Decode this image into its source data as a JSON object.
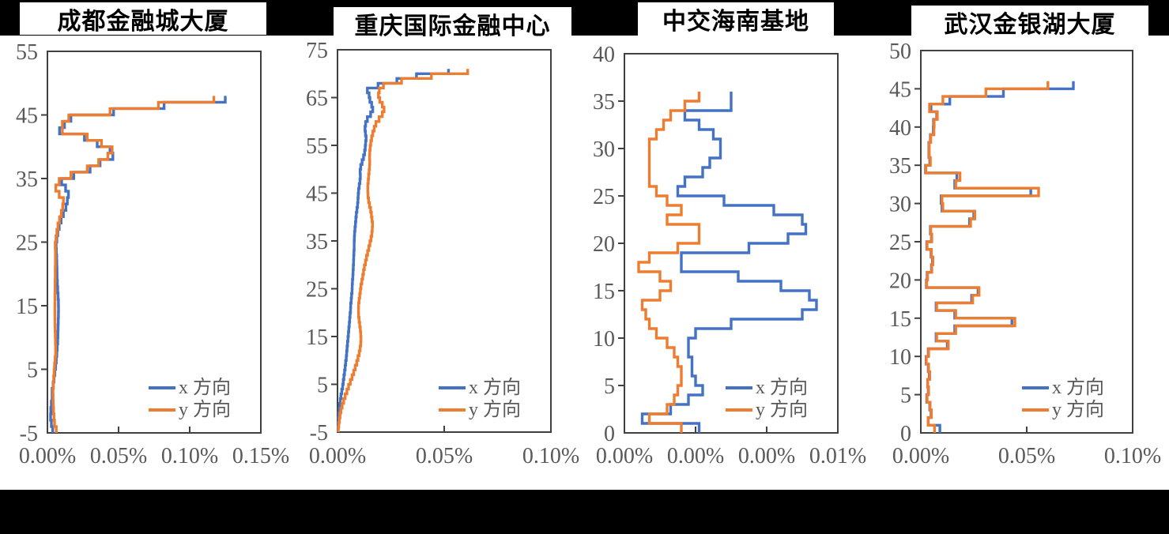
{
  "colors": {
    "series_x": "#4472C4",
    "series_y": "#ED7D31",
    "axis_line": "#404040",
    "axis_text": "#595959",
    "background_band": "#000000",
    "panel_background": "#ffffff",
    "title_text": "#000000"
  },
  "legend": {
    "x_label": "x 方向",
    "y_label": "y 方向",
    "position": "inside bottom-right"
  },
  "chart_data": [
    {
      "type": "line",
      "step": true,
      "title": "成都金融城大厦",
      "xlabel": "",
      "ylabel": "",
      "x_tick_labels": [
        "0.00%",
        "0.05%",
        "0.10%",
        "0.15%"
      ],
      "x_min": 0.0,
      "x_max": 0.15,
      "y_min": -5,
      "y_max": 55,
      "y_tick_step": 10,
      "grid": false,
      "legend_position": "inside bottom-right",
      "floors_from": -4,
      "floors_to": 48,
      "series": [
        {
          "name": "x 方向",
          "values": [
            0.0037,
            0.0028,
            0.0022,
            0.0024,
            0.0028,
            0.0033,
            0.0033,
            0.004,
            0.0046,
            0.0052,
            0.0058,
            0.0062,
            0.0066,
            0.0069,
            0.0072,
            0.0074,
            0.0075,
            0.0076,
            0.0077,
            0.0078,
            0.0077,
            0.0075,
            0.0072,
            0.007,
            0.0068,
            0.0067,
            0.0066,
            0.0065,
            0.0063,
            0.0061,
            0.0066,
            0.0073,
            0.0083,
            0.0096,
            0.0112,
            0.013,
            0.014,
            0.0148,
            0.0128,
            0.01,
            0.0185,
            0.03,
            0.037,
            0.046,
            0.044,
            0.035,
            0.026,
            0.0085,
            0.012,
            0.0165,
            0.0465,
            0.082,
            0.125
          ]
        },
        {
          "name": "y 方向",
          "values": [
            0.0062,
            0.005,
            0.0046,
            0.0043,
            0.0041,
            0.004,
            0.0039,
            0.0042,
            0.0044,
            0.0047,
            0.005,
            0.0054,
            0.0058,
            0.0057,
            0.0056,
            0.0055,
            0.0054,
            0.0053,
            0.0052,
            0.0052,
            0.0053,
            0.0053,
            0.0054,
            0.0054,
            0.0055,
            0.0055,
            0.0056,
            0.0056,
            0.0056,
            0.0055,
            0.006,
            0.0066,
            0.0074,
            0.0085,
            0.0098,
            0.0107,
            0.0112,
            0.0083,
            0.0059,
            0.0083,
            0.0165,
            0.028,
            0.036,
            0.0425,
            0.0455,
            0.038,
            0.028,
            0.0105,
            0.0105,
            0.015,
            0.044,
            0.078,
            0.117
          ]
        }
      ]
    },
    {
      "type": "line",
      "step": true,
      "title": "重庆国际金融中心",
      "xlabel": "",
      "ylabel": "",
      "x_tick_labels": [
        "0.00%",
        "0.05%",
        "0.10%"
      ],
      "x_min": 0.0,
      "x_max": 0.1,
      "y_min": -5,
      "y_max": 75,
      "y_tick_step": 10,
      "grid": false,
      "legend_position": "inside bottom-right",
      "floors_from": -4,
      "floors_to": 71,
      "series": [
        {
          "name": "x 方向",
          "values": [
            0.0003,
            0.0004,
            0.0005,
            0.0006,
            0.0008,
            0.001,
            0.0013,
            0.0016,
            0.002,
            0.0024,
            0.0027,
            0.003,
            0.0033,
            0.0036,
            0.0038,
            0.0041,
            0.0043,
            0.0045,
            0.0047,
            0.0049,
            0.0051,
            0.0053,
            0.0055,
            0.0057,
            0.0059,
            0.0061,
            0.0062,
            0.0064,
            0.0066,
            0.0068,
            0.0069,
            0.007,
            0.0072,
            0.0073,
            0.0074,
            0.0075,
            0.0076,
            0.0077,
            0.0078,
            0.0078,
            0.0079,
            0.008,
            0.0082,
            0.0084,
            0.0086,
            0.0088,
            0.0091,
            0.0094,
            0.0096,
            0.0097,
            0.0099,
            0.0102,
            0.0105,
            0.0107,
            0.0106,
            0.0109,
            0.0115,
            0.0122,
            0.0127,
            0.013,
            0.0132,
            0.0134,
            0.0131,
            0.0129,
            0.0132,
            0.014,
            0.0155,
            0.0165,
            0.016,
            0.0152,
            0.0148,
            0.014,
            0.019,
            0.0278,
            0.037,
            0.052
          ]
        },
        {
          "name": "y 方向",
          "values": [
            0.0004,
            0.0006,
            0.0009,
            0.0012,
            0.0016,
            0.0022,
            0.0029,
            0.0036,
            0.0044,
            0.0052,
            0.006,
            0.0068,
            0.0076,
            0.0083,
            0.009,
            0.0096,
            0.0102,
            0.0106,
            0.0109,
            0.011,
            0.0109,
            0.0107,
            0.0104,
            0.0101,
            0.0099,
            0.0098,
            0.0099,
            0.0101,
            0.0104,
            0.0107,
            0.011,
            0.0114,
            0.0118,
            0.0122,
            0.0126,
            0.0131,
            0.0136,
            0.0141,
            0.0147,
            0.0152,
            0.0157,
            0.0161,
            0.0163,
            0.0164,
            0.0162,
            0.0159,
            0.0155,
            0.015,
            0.0146,
            0.0143,
            0.0142,
            0.0142,
            0.0144,
            0.0146,
            0.0148,
            0.015,
            0.0151,
            0.015,
            0.0151,
            0.0153,
            0.0156,
            0.016,
            0.0165,
            0.0172,
            0.018,
            0.0195,
            0.021,
            0.0218,
            0.021,
            0.0198,
            0.0192,
            0.0196,
            0.0215,
            0.03,
            0.044,
            0.061
          ]
        }
      ]
    },
    {
      "type": "line",
      "step": true,
      "title": "中交海南基地",
      "xlabel": "",
      "ylabel": "",
      "x_tick_labels": [
        "0.00%",
        "0.00%",
        "0.00%",
        "0.01%"
      ],
      "x_min": 0.0,
      "x_max": 0.006,
      "y_min": 0,
      "y_max": 40,
      "y_tick_step": 5,
      "grid": false,
      "legend_position": "inside bottom-right",
      "floors_from": 1,
      "floors_to": 36,
      "series": [
        {
          "name": "x 方向",
          "values": [
            0.0021,
            0.0005,
            0.0013,
            0.0018,
            0.0022,
            0.002,
            0.0019,
            0.0019,
            0.0018,
            0.0018,
            0.002,
            0.003,
            0.005,
            0.0054,
            0.0052,
            0.0044,
            0.0032,
            0.0016,
            0.0016,
            0.0035,
            0.0046,
            0.0051,
            0.005,
            0.0042,
            0.0028,
            0.0015,
            0.0017,
            0.0022,
            0.0024,
            0.0027,
            0.0027,
            0.0025,
            0.0021,
            0.0017,
            0.003,
            0.003
          ]
        },
        {
          "name": "y 方向",
          "values": [
            0.0016,
            0.0007,
            0.0012,
            0.0014,
            0.0015,
            0.0016,
            0.0016,
            0.0015,
            0.0014,
            0.0012,
            0.0009,
            0.0007,
            0.0006,
            0.0005,
            0.001,
            0.0013,
            0.001,
            0.0004,
            0.0007,
            0.0015,
            0.0021,
            0.0021,
            0.0012,
            0.0016,
            0.0012,
            0.0009,
            0.0007,
            0.0007,
            0.0007,
            0.0007,
            0.0007,
            0.0009,
            0.0011,
            0.0013,
            0.0017,
            0.0021
          ]
        }
      ]
    },
    {
      "type": "line",
      "step": true,
      "title": "武汉金银湖大厦",
      "xlabel": "",
      "ylabel": "",
      "x_tick_labels": [
        "0.00%",
        "0.05%",
        "0.10%"
      ],
      "x_min": 0.0,
      "x_max": 0.1,
      "y_min": 0,
      "y_max": 50,
      "y_tick_step": 5,
      "grid": false,
      "legend_position": "inside bottom-right",
      "floors_from": 1,
      "floors_to": 46,
      "series": [
        {
          "name": "x 方向",
          "values": [
            0.009,
            0.0035,
            0.0048,
            0.0042,
            0.0028,
            0.0035,
            0.0032,
            0.004,
            0.0035,
            0.0025,
            0.0035,
            0.0125,
            0.0072,
            0.016,
            0.043,
            0.016,
            0.0072,
            0.024,
            0.027,
            0.0026,
            0.003,
            0.005,
            0.0055,
            0.0048,
            0.0028,
            0.005,
            0.0045,
            0.023,
            0.025,
            0.01,
            0.0096,
            0.0519,
            0.016,
            0.017,
            0.0022,
            0.0042,
            0.0038,
            0.0038,
            0.0045,
            0.0059,
            0.006,
            0.0075,
            0.0048,
            0.0137,
            0.039,
            0.072
          ]
        },
        {
          "name": "y 方向",
          "values": [
            0.0065,
            0.0035,
            0.005,
            0.0044,
            0.003,
            0.0037,
            0.0033,
            0.0042,
            0.0037,
            0.0026,
            0.0037,
            0.013,
            0.0075,
            0.0165,
            0.0444,
            0.0165,
            0.0075,
            0.0245,
            0.0275,
            0.0028,
            0.0032,
            0.0052,
            0.0057,
            0.005,
            0.003,
            0.0052,
            0.0047,
            0.0235,
            0.0255,
            0.0104,
            0.01,
            0.0556,
            0.0165,
            0.0185,
            0.0024,
            0.0045,
            0.004,
            0.004,
            0.0047,
            0.0062,
            0.0063,
            0.0078,
            0.0041,
            0.0104,
            0.0307,
            0.06
          ]
        }
      ]
    }
  ]
}
